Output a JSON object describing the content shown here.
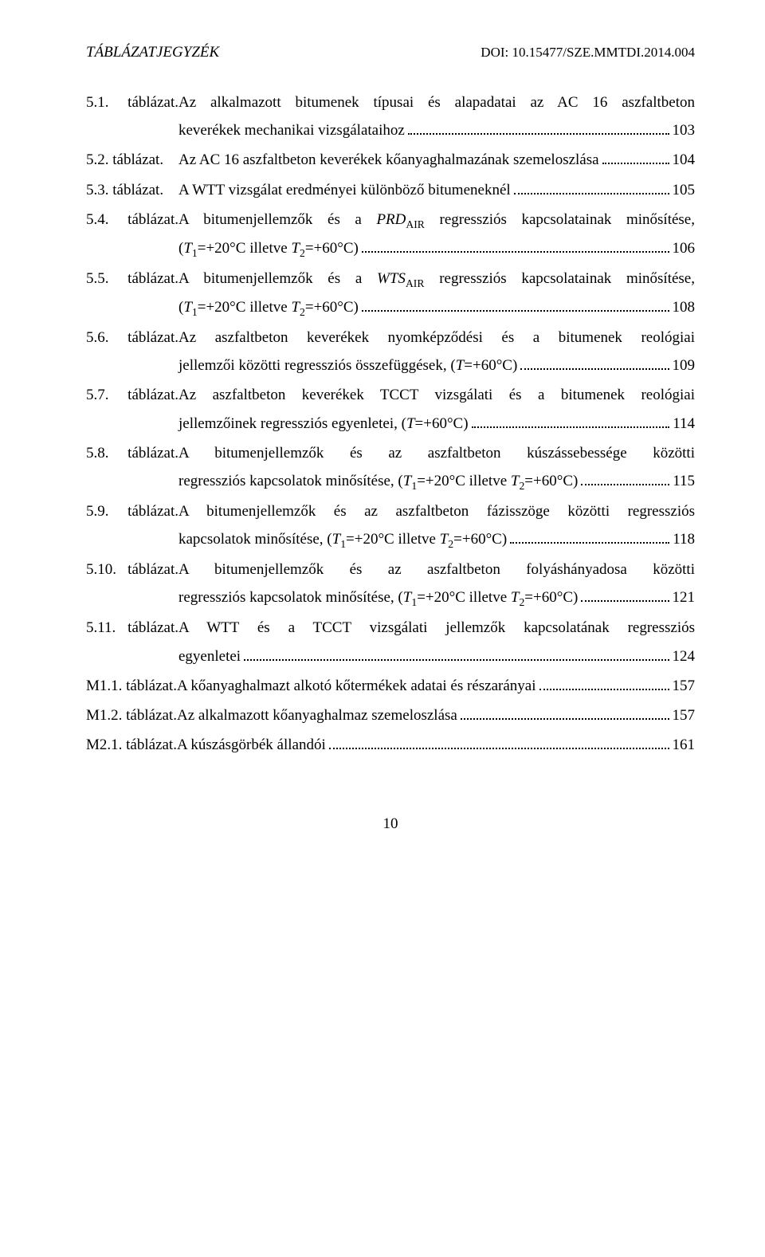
{
  "header": {
    "left": "TÁBLÁZATJEGYZÉK",
    "right": "DOI: 10.15477/SZE.MMTDI.2014.004"
  },
  "entries": [
    {
      "label": "5.1. táblázat.",
      "text_lines": [
        "Az alkalmazott bitumenek típusai és alapadatai az AC 16 aszfaltbeton"
      ],
      "last_line": "keverékek mechanikai vizsgálataihoz",
      "page": "103",
      "indent": true
    },
    {
      "label": "5.2. táblázat.",
      "text_lines": [],
      "last_line": "Az AC 16 aszfaltbeton keverékek kőanyaghalmazának szemeloszlása",
      "page": "104",
      "indent": false
    },
    {
      "label": "5.3. táblázat.",
      "text_lines": [],
      "last_line": "A WTT vizsgálat eredményei különböző bitumeneknél",
      "page": "105",
      "indent": false
    },
    {
      "label": "5.4. táblázat.",
      "text_lines": [
        "A bitumenjellemzők és a <span class=\"italic\">PRD</span><sub>AIR</sub> regressziós kapcsolatainak minősítése,"
      ],
      "last_line": "(<span class=\"italic\">T</span><sub>1</sub>=+20°C illetve <span class=\"italic\">T</span><sub>2</sub>=+60°C)",
      "page": "106",
      "indent": true
    },
    {
      "label": "5.5. táblázat.",
      "text_lines": [
        "A bitumenjellemzők és a <span class=\"italic\">WTS</span><sub>AIR</sub> regressziós kapcsolatainak minősítése,"
      ],
      "last_line": "(<span class=\"italic\">T</span><sub>1</sub>=+20°C illetve <span class=\"italic\">T</span><sub>2</sub>=+60°C)",
      "page": "108",
      "indent": true
    },
    {
      "label": "5.6. táblázat.",
      "text_lines": [
        "Az aszfaltbeton keverékek nyomképződési és a bitumenek reológiai"
      ],
      "last_line": "jellemzői közötti regressziós összefüggések, (<span class=\"italic\">T</span>=+60°C)",
      "page": "109",
      "indent": true
    },
    {
      "label": "5.7. táblázat.",
      "text_lines": [
        "Az aszfaltbeton keverékek TCCT vizsgálati és a bitumenek reológiai"
      ],
      "last_line": "jellemzőinek regressziós egyenletei, (<span class=\"italic\">T</span>=+60°C)",
      "page": "114",
      "indent": true
    },
    {
      "label": "5.8. táblázat.",
      "text_lines": [
        "A bitumenjellemzők és az aszfaltbeton kúszássebessége közötti"
      ],
      "last_line": "regressziós kapcsolatok minősítése, (<span class=\"italic\">T</span><sub>1</sub>=+20°C illetve <span class=\"italic\">T</span><sub>2</sub>=+60°C)",
      "page": "115",
      "indent": true
    },
    {
      "label": "5.9. táblázat.",
      "text_lines": [
        "A bitumenjellemzők és az aszfaltbeton fázisszöge közötti regressziós"
      ],
      "last_line": "kapcsolatok minősítése, (<span class=\"italic\">T</span><sub>1</sub>=+20°C illetve <span class=\"italic\">T</span><sub>2</sub>=+60°C)",
      "page": "118",
      "indent": true
    },
    {
      "label": "5.10. táblázat.",
      "text_lines": [
        "A bitumenjellemzők és az aszfaltbeton folyáshányadosa közötti"
      ],
      "last_line": "regressziós kapcsolatok minősítése, (<span class=\"italic\">T</span><sub>1</sub>=+20°C illetve <span class=\"italic\">T</span><sub>2</sub>=+60°C)",
      "page": "121",
      "indent": true
    },
    {
      "label": "5.11. táblázat.",
      "text_lines": [
        "A WTT és a TCCT vizsgálati jellemzők kapcsolatának regressziós"
      ],
      "last_line": "egyenletei",
      "page": "124",
      "indent": true
    },
    {
      "label": "M1.1. táblázat.",
      "text_lines": [],
      "last_line": "A kőanyaghalmazt alkotó kőtermékek adatai és részarányai",
      "page": "157",
      "indent": false,
      "flat": true
    },
    {
      "label": "M1.2. táblázat.",
      "text_lines": [],
      "last_line": "Az alkalmazott kőanyaghalmaz szemeloszlása",
      "page": "157",
      "indent": false,
      "flat": true
    },
    {
      "label": "M2.1. táblázat.",
      "text_lines": [],
      "last_line": "A kúszásgörbék állandói",
      "page": "161",
      "indent": false,
      "flat": true
    }
  ],
  "footer": {
    "page_number": "10"
  }
}
